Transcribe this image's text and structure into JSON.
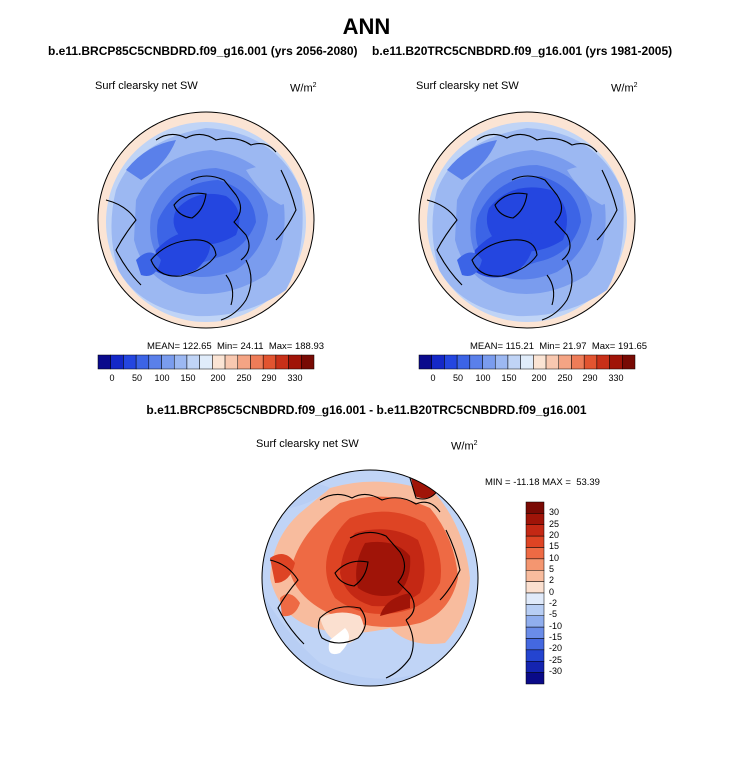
{
  "header": {
    "title": "ANN"
  },
  "chart_data": [
    {
      "type": "heatmap",
      "projection": "north-polar-stereographic",
      "title": "b.e11.BRCP85C5CNBDRD.f09_g16.001 (yrs 2056-2080)",
      "variable": "Surf clearsky net SW",
      "units": "W/m",
      "units_exp": "2",
      "stats": {
        "mean_label": "MEAN=",
        "mean": "122.65",
        "min_label": "Min=",
        "min": "24.11",
        "max_label": "Max=",
        "max": "188.93"
      },
      "colorbar": {
        "orientation": "horizontal",
        "tick_labels": [
          "0",
          "50",
          "100",
          "150",
          "200",
          "250",
          "290",
          "330"
        ],
        "colors": [
          "#0a0a8c",
          "#1428c8",
          "#2446e0",
          "#3c64e6",
          "#5a80ea",
          "#7a9cee",
          "#9cb8f2",
          "#c0d4f6",
          "#e0ecfa",
          "#fbe4d4",
          "#f8c8b0",
          "#f4a484",
          "#ee7c58",
          "#e25430",
          "#c83018",
          "#a01408",
          "#780a04"
        ]
      }
    },
    {
      "type": "heatmap",
      "projection": "north-polar-stereographic",
      "title": "b.e11.B20TRC5CNBDRD.f09_g16.001 (yrs 1981-2005)",
      "variable": "Surf clearsky net SW",
      "units": "W/m",
      "units_exp": "2",
      "stats": {
        "mean_label": "MEAN=",
        "mean": "115.21",
        "min_label": "Min=",
        "min": "21.97",
        "max_label": "Max=",
        "max": "191.65"
      },
      "colorbar": {
        "orientation": "horizontal",
        "tick_labels": [
          "0",
          "50",
          "100",
          "150",
          "200",
          "250",
          "290",
          "330"
        ],
        "colors": [
          "#0a0a8c",
          "#1428c8",
          "#2446e0",
          "#3c64e6",
          "#5a80ea",
          "#7a9cee",
          "#9cb8f2",
          "#c0d4f6",
          "#e0ecfa",
          "#fbe4d4",
          "#f8c8b0",
          "#f4a484",
          "#ee7c58",
          "#e25430",
          "#c83018",
          "#a01408",
          "#780a04"
        ]
      }
    },
    {
      "type": "heatmap",
      "projection": "north-polar-stereographic",
      "title": "b.e11.BRCP85C5CNBDRD.f09_g16.001 - b.e11.B20TRC5CNBDRD.f09_g16.001",
      "variable": "Surf clearsky net SW",
      "units": "W/m",
      "units_exp": "2",
      "stats": {
        "min_label": "MIN =",
        "min": "-11.18",
        "max_label": "MAX =",
        "max": "53.39"
      },
      "colorbar": {
        "orientation": "vertical",
        "tick_labels": [
          "30",
          "25",
          "20",
          "15",
          "10",
          "5",
          "2",
          "0",
          "-2",
          "-5",
          "-10",
          "-15",
          "-20",
          "-25",
          "-30"
        ],
        "colors": [
          "#7a0a04",
          "#a01408",
          "#c42814",
          "#de4424",
          "#ee6a44",
          "#f49670",
          "#f8bc9e",
          "#fbe0d0",
          "#e0eafa",
          "#b8cef4",
          "#90aeee",
          "#6a8ce8",
          "#4468e0",
          "#2444d0",
          "#1424b0",
          "#0a0a88"
        ]
      }
    }
  ]
}
